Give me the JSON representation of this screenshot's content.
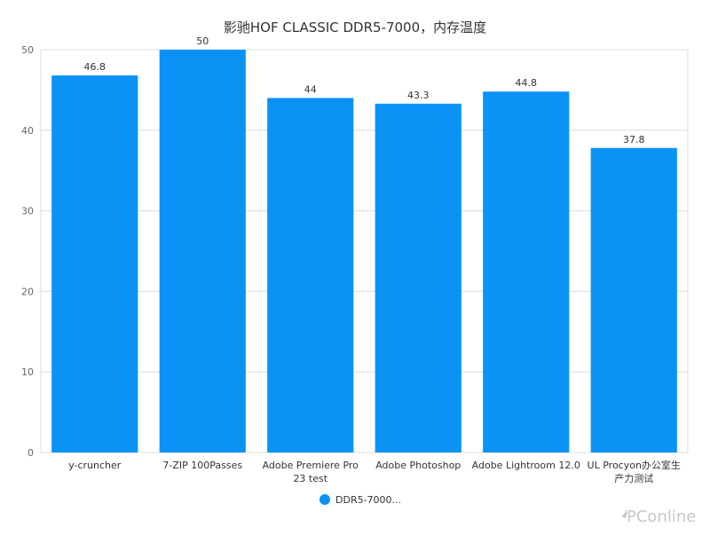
{
  "chart_data": {
    "type": "bar",
    "title": "影驰HOF CLASSIC DDR5-7000，内存温度",
    "categories": [
      "y-cruncher",
      "7-ZIP 100Passes",
      "Adobe Premiere Pro 23 test",
      "Adobe Photoshop",
      "Adobe Lightroom 12.0",
      "UL Procyon办公室生产力测试"
    ],
    "category_label_lines": [
      [
        "y-cruncher"
      ],
      [
        "7-ZIP 100Passes"
      ],
      [
        "Adobe Premiere Pro",
        "23 test"
      ],
      [
        "Adobe Photoshop"
      ],
      [
        "Adobe Lightroom 12.0"
      ],
      [
        "UL Procyon办公室生",
        "产力测试"
      ]
    ],
    "series": [
      {
        "name": "DDR5-7000...",
        "values": [
          46.8,
          50,
          44,
          43.3,
          44.8,
          37.8
        ],
        "color": "#0a93f5"
      }
    ],
    "data_labels": [
      "46.8",
      "50",
      "44",
      "43.3",
      "44.8",
      "37.8"
    ],
    "ylim": [
      0,
      50
    ],
    "yticks": [
      0,
      10,
      20,
      30,
      40,
      50
    ],
    "grid": true,
    "legend_position": "bottom"
  },
  "watermark": "PConline"
}
